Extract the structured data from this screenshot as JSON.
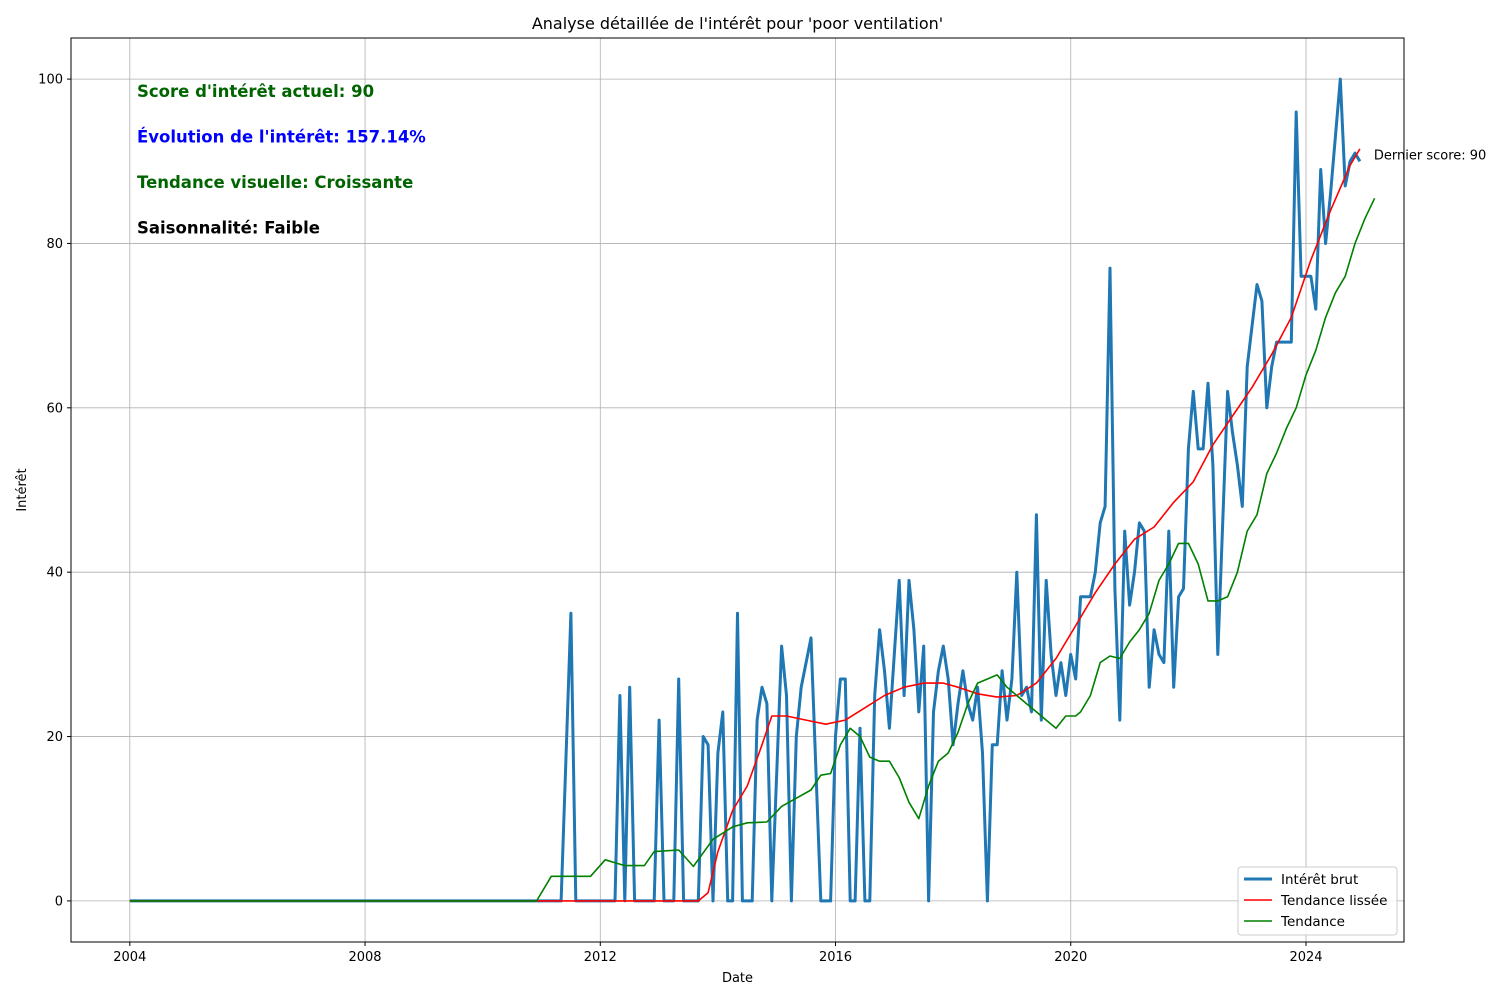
{
  "chart_data": {
    "type": "line",
    "title": "Analyse détaillée de l'intérêt pour 'poor ventilation'",
    "xlabel": "Date",
    "ylabel": "Intérêt",
    "xlim": [
      "2003-01",
      "2025-09"
    ],
    "ylim": [
      -5,
      105
    ],
    "x_ticks": [
      {
        "date": "2004-01",
        "label": "2004"
      },
      {
        "date": "2008-01",
        "label": "2008"
      },
      {
        "date": "2012-01",
        "label": "2012"
      },
      {
        "date": "2016-01",
        "label": "2016"
      },
      {
        "date": "2020-01",
        "label": "2020"
      },
      {
        "date": "2024-01",
        "label": "2024"
      }
    ],
    "y_ticks": [
      0,
      20,
      40,
      60,
      80,
      100
    ],
    "grid": true,
    "legend_position": "lower-right",
    "annotations": [
      {
        "text": "Score d'intérêt actuel: 90",
        "color": "#006400"
      },
      {
        "text": "Évolution de l'intérêt: 157.14%",
        "color": "#0000ff"
      },
      {
        "text": "Tendance visuelle: Croissante",
        "color": "#006400"
      },
      {
        "text": "Saisonnalité: Faible",
        "color": "#000000"
      }
    ],
    "last_point_label": "Dernier score: 90",
    "series": [
      {
        "name": "Intérêt brut",
        "color": "#1f77b4",
        "points": [
          [
            "2004-01",
            0
          ],
          [
            "2011-05",
            0
          ],
          [
            "2011-07",
            35
          ],
          [
            "2011-08",
            0
          ],
          [
            "2012-04",
            0
          ],
          [
            "2012-05",
            25
          ],
          [
            "2012-06",
            0
          ],
          [
            "2012-07",
            26
          ],
          [
            "2012-08",
            0
          ],
          [
            "2012-12",
            0
          ],
          [
            "2013-01",
            22
          ],
          [
            "2013-02",
            0
          ],
          [
            "2013-04",
            0
          ],
          [
            "2013-05",
            27
          ],
          [
            "2013-06",
            0
          ],
          [
            "2013-09",
            0
          ],
          [
            "2013-10",
            20
          ],
          [
            "2013-11",
            19
          ],
          [
            "2013-12",
            0
          ],
          [
            "2014-01",
            18
          ],
          [
            "2014-02",
            23
          ],
          [
            "2014-03",
            0
          ],
          [
            "2014-04",
            0
          ],
          [
            "2014-05",
            35
          ],
          [
            "2014-06",
            0
          ],
          [
            "2014-08",
            0
          ],
          [
            "2014-09",
            22
          ],
          [
            "2014-10",
            26
          ],
          [
            "2014-11",
            24
          ],
          [
            "2014-12",
            0
          ],
          [
            "2015-02",
            31
          ],
          [
            "2015-03",
            25
          ],
          [
            "2015-04",
            0
          ],
          [
            "2015-05",
            20
          ],
          [
            "2015-06",
            26
          ],
          [
            "2015-08",
            32
          ],
          [
            "2015-10",
            0
          ],
          [
            "2015-12",
            0
          ],
          [
            "2016-01",
            20
          ],
          [
            "2016-02",
            27
          ],
          [
            "2016-03",
            27
          ],
          [
            "2016-04",
            0
          ],
          [
            "2016-05",
            0
          ],
          [
            "2016-06",
            21
          ],
          [
            "2016-07",
            0
          ],
          [
            "2016-08",
            0
          ],
          [
            "2016-09",
            25
          ],
          [
            "2016-10",
            33
          ],
          [
            "2016-11",
            28
          ],
          [
            "2016-12",
            21
          ],
          [
            "2017-02",
            39
          ],
          [
            "2017-03",
            25
          ],
          [
            "2017-04",
            39
          ],
          [
            "2017-05",
            33
          ],
          [
            "2017-06",
            23
          ],
          [
            "2017-07",
            31
          ],
          [
            "2017-08",
            0
          ],
          [
            "2017-09",
            23
          ],
          [
            "2017-10",
            28
          ],
          [
            "2017-11",
            31
          ],
          [
            "2017-12",
            27
          ],
          [
            "2018-01",
            19
          ],
          [
            "2018-02",
            24
          ],
          [
            "2018-03",
            28
          ],
          [
            "2018-04",
            24
          ],
          [
            "2018-05",
            22
          ],
          [
            "2018-06",
            26
          ],
          [
            "2018-07",
            18
          ],
          [
            "2018-08",
            0
          ],
          [
            "2018-09",
            19
          ],
          [
            "2018-10",
            19
          ],
          [
            "2018-11",
            28
          ],
          [
            "2018-12",
            22
          ],
          [
            "2019-01",
            27
          ],
          [
            "2019-02",
            40
          ],
          [
            "2019-03",
            25
          ],
          [
            "2019-04",
            26
          ],
          [
            "2019-05",
            23
          ],
          [
            "2019-06",
            47
          ],
          [
            "2019-07",
            22
          ],
          [
            "2019-08",
            39
          ],
          [
            "2019-09",
            30
          ],
          [
            "2019-10",
            25
          ],
          [
            "2019-11",
            29
          ],
          [
            "2019-12",
            25
          ],
          [
            "2020-01",
            30
          ],
          [
            "2020-02",
            27
          ],
          [
            "2020-03",
            37
          ],
          [
            "2020-04",
            37
          ],
          [
            "2020-05",
            37
          ],
          [
            "2020-06",
            40
          ],
          [
            "2020-07",
            46
          ],
          [
            "2020-08",
            48
          ],
          [
            "2020-09",
            77
          ],
          [
            "2020-10",
            38
          ],
          [
            "2020-11",
            22
          ],
          [
            "2020-12",
            45
          ],
          [
            "2021-01",
            36
          ],
          [
            "2021-02",
            40
          ],
          [
            "2021-03",
            46
          ],
          [
            "2021-04",
            45
          ],
          [
            "2021-05",
            26
          ],
          [
            "2021-06",
            33
          ],
          [
            "2021-07",
            30
          ],
          [
            "2021-08",
            29
          ],
          [
            "2021-09",
            45
          ],
          [
            "2021-10",
            26
          ],
          [
            "2021-11",
            37
          ],
          [
            "2021-12",
            38
          ],
          [
            "2022-01",
            55
          ],
          [
            "2022-02",
            62
          ],
          [
            "2022-03",
            55
          ],
          [
            "2022-04",
            55
          ],
          [
            "2022-05",
            63
          ],
          [
            "2022-06",
            53
          ],
          [
            "2022-07",
            30
          ],
          [
            "2022-08",
            46
          ],
          [
            "2022-09",
            62
          ],
          [
            "2022-10",
            57
          ],
          [
            "2022-11",
            53
          ],
          [
            "2022-12",
            48
          ],
          [
            "2023-01",
            65
          ],
          [
            "2023-02",
            70
          ],
          [
            "2023-03",
            75
          ],
          [
            "2023-04",
            73
          ],
          [
            "2023-05",
            60
          ],
          [
            "2023-06",
            65
          ],
          [
            "2023-07",
            68
          ],
          [
            "2023-08",
            68
          ],
          [
            "2023-09",
            68
          ],
          [
            "2023-10",
            68
          ],
          [
            "2023-11",
            96
          ],
          [
            "2023-12",
            76
          ],
          [
            "2024-01",
            76
          ],
          [
            "2024-02",
            76
          ],
          [
            "2024-03",
            72
          ],
          [
            "2024-04",
            89
          ],
          [
            "2024-05",
            80
          ],
          [
            "2024-06",
            86
          ],
          [
            "2024-07",
            93
          ],
          [
            "2024-08",
            100
          ],
          [
            "2024-09",
            87
          ],
          [
            "2024-10",
            90
          ],
          [
            "2024-11",
            91
          ],
          [
            "2024-12",
            90
          ]
        ]
      },
      {
        "name": "Tendance lissée",
        "color": "#ff0000",
        "points": [
          [
            "2004-01",
            0
          ],
          [
            "2013-09",
            0
          ],
          [
            "2013-11",
            1
          ],
          [
            "2014-01",
            6
          ],
          [
            "2014-04",
            11
          ],
          [
            "2014-07",
            14
          ],
          [
            "2014-10",
            19
          ],
          [
            "2014-12",
            22.5
          ],
          [
            "2015-03",
            22.5
          ],
          [
            "2015-07",
            22
          ],
          [
            "2015-11",
            21.5
          ],
          [
            "2016-03",
            22
          ],
          [
            "2016-07",
            23.5
          ],
          [
            "2016-11",
            25
          ],
          [
            "2017-03",
            26
          ],
          [
            "2017-07",
            26.5
          ],
          [
            "2017-11",
            26.5
          ],
          [
            "2018-02",
            26
          ],
          [
            "2018-06",
            25.2
          ],
          [
            "2018-10",
            24.8
          ],
          [
            "2019-02",
            25
          ],
          [
            "2019-06",
            26.5
          ],
          [
            "2019-10",
            29.5
          ],
          [
            "2020-02",
            33.5
          ],
          [
            "2020-06",
            37.5
          ],
          [
            "2020-10",
            41
          ],
          [
            "2021-02",
            44
          ],
          [
            "2021-06",
            45.5
          ],
          [
            "2021-10",
            48.5
          ],
          [
            "2022-02",
            51
          ],
          [
            "2022-06",
            55.5
          ],
          [
            "2022-10",
            59
          ],
          [
            "2023-02",
            62.5
          ],
          [
            "2023-06",
            66.5
          ],
          [
            "2023-10",
            71
          ],
          [
            "2024-02",
            78
          ],
          [
            "2024-06",
            84
          ],
          [
            "2024-10",
            89.5
          ],
          [
            "2024-12",
            91.5
          ]
        ]
      },
      {
        "name": "Tendance",
        "color": "#008000",
        "points": [
          [
            "2004-01",
            0
          ],
          [
            "2010-12",
            0
          ],
          [
            "2011-03",
            3
          ],
          [
            "2011-11",
            3
          ],
          [
            "2012-02",
            5
          ],
          [
            "2012-06",
            4.3
          ],
          [
            "2012-10",
            4.3
          ],
          [
            "2012-12",
            6
          ],
          [
            "2013-05",
            6.2
          ],
          [
            "2013-08",
            4.2
          ],
          [
            "2013-12",
            7.5
          ],
          [
            "2014-04",
            9
          ],
          [
            "2014-07",
            9.5
          ],
          [
            "2014-11",
            9.6
          ],
          [
            "2015-02",
            11.5
          ],
          [
            "2015-05",
            12.5
          ],
          [
            "2015-08",
            13.5
          ],
          [
            "2015-10",
            15.3
          ],
          [
            "2015-12",
            15.5
          ],
          [
            "2016-02",
            19
          ],
          [
            "2016-04",
            21
          ],
          [
            "2016-06",
            20
          ],
          [
            "2016-08",
            17.5
          ],
          [
            "2016-10",
            17
          ],
          [
            "2016-12",
            17
          ],
          [
            "2017-02",
            15
          ],
          [
            "2017-04",
            12
          ],
          [
            "2017-06",
            10
          ],
          [
            "2017-08",
            14
          ],
          [
            "2017-10",
            17
          ],
          [
            "2017-12",
            18
          ],
          [
            "2018-02",
            20.5
          ],
          [
            "2018-04",
            24
          ],
          [
            "2018-06",
            26.5
          ],
          [
            "2018-08",
            27
          ],
          [
            "2018-10",
            27.5
          ],
          [
            "2018-12",
            26
          ],
          [
            "2019-02",
            25
          ],
          [
            "2019-04",
            24
          ],
          [
            "2019-06",
            23
          ],
          [
            "2019-08",
            22
          ],
          [
            "2019-10",
            21
          ],
          [
            "2019-12",
            22.5
          ],
          [
            "2020-02",
            22.5
          ],
          [
            "2020-03",
            23
          ],
          [
            "2020-05",
            25
          ],
          [
            "2020-07",
            29
          ],
          [
            "2020-09",
            29.8
          ],
          [
            "2020-11",
            29.5
          ],
          [
            "2021-01",
            31.5
          ],
          [
            "2021-03",
            33
          ],
          [
            "2021-05",
            35
          ],
          [
            "2021-07",
            39
          ],
          [
            "2021-09",
            41
          ],
          [
            "2021-11",
            43.5
          ],
          [
            "2022-01",
            43.5
          ],
          [
            "2022-03",
            41
          ],
          [
            "2022-05",
            36.5
          ],
          [
            "2022-07",
            36.5
          ],
          [
            "2022-09",
            37
          ],
          [
            "2022-11",
            40
          ],
          [
            "2023-01",
            45
          ],
          [
            "2023-03",
            47
          ],
          [
            "2023-05",
            52
          ],
          [
            "2023-07",
            54.5
          ],
          [
            "2023-09",
            57.5
          ],
          [
            "2023-11",
            60
          ],
          [
            "2024-01",
            64
          ],
          [
            "2024-03",
            67
          ],
          [
            "2024-05",
            71
          ],
          [
            "2024-07",
            74
          ],
          [
            "2024-09",
            76
          ],
          [
            "2024-11",
            80
          ],
          [
            "2025-01",
            83
          ],
          [
            "2025-03",
            85.5
          ]
        ]
      }
    ]
  }
}
